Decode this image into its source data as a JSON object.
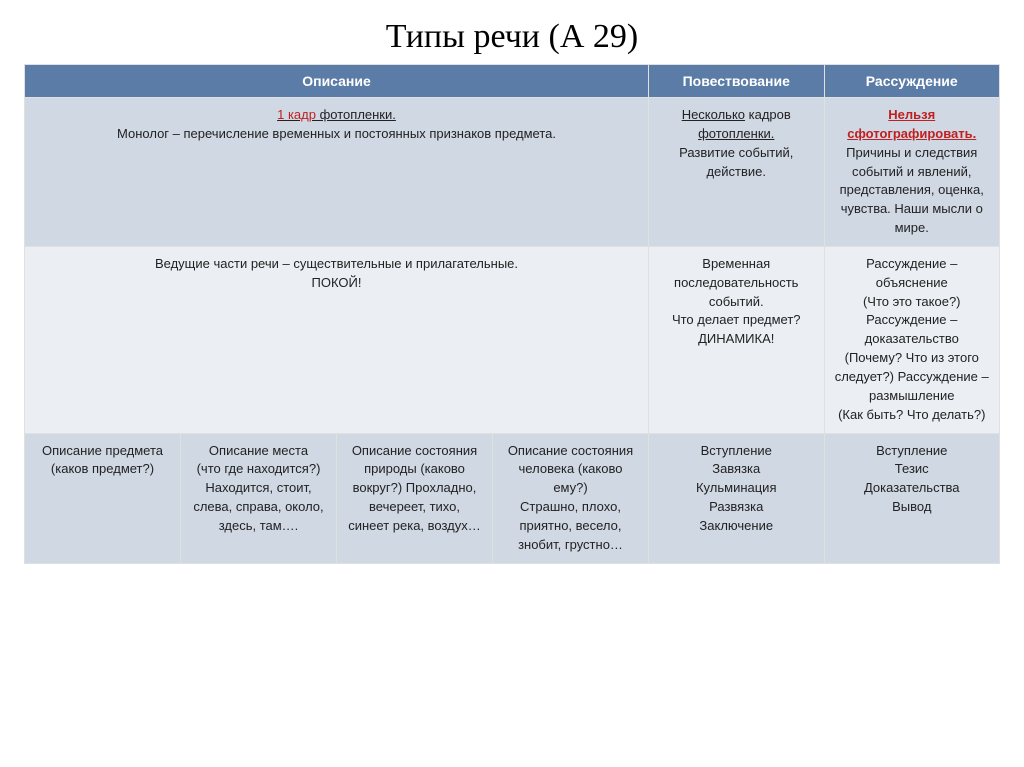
{
  "title": "Типы речи (А 29)",
  "colors": {
    "header_bg": "#5b7ca6",
    "header_text": "#ffffff",
    "row_odd": "#d0d8e4",
    "row_even": "#ebeef3",
    "accent_red": "#c02020",
    "border": "#e0e0e0",
    "text": "#222222"
  },
  "table": {
    "col_widths_pct": [
      16,
      16,
      16,
      16,
      18,
      18
    ],
    "headers": {
      "description": "Описание",
      "narration": "Повествование",
      "reasoning": "Рассуждение"
    },
    "row1": {
      "description": {
        "prefix_red_underline": "1 кадр",
        "prefix_rest_underline": " фотопленки.",
        "body": "Монолог – перечисление временных и постоянных признаков предмета."
      },
      "narration": {
        "line1_underline": "Несколько",
        "line1_rest": " кадров",
        "line2_underline": "фотопленки.",
        "body": "Развитие событий, действие."
      },
      "reasoning": {
        "line1_red_bold_u": "Нельзя",
        "line2_red_bold_u": "сфотографировать.",
        "body": "Причины и следствия событий и явлений, представления, оценка, чувства. Наши мысли о мире."
      }
    },
    "row2": {
      "description": {
        "line1": "Ведущие части речи – существительные и прилагательные.",
        "line2": "ПОКОЙ!"
      },
      "narration": "Временная последовательность событий.\nЧто делает предмет?\nДИНАМИКА!",
      "reasoning": "Рассуждение – объяснение\n(Что это такое?)\nРассуждение – доказательство (Почему? Что из этого следует?) Рассуждение – размышление\n(Как быть? Что делать?)"
    },
    "row3": {
      "c1": "Описание предмета\n(каков предмет?)",
      "c2": "Описание места\n(что где находится?)\nНаходится, стоит, слева, справа, около, здесь, там….",
      "c3": "Описание состояния природы (каково вокруг?) Прохладно, вечереет, тихо, синеет река, воздух…",
      "c4": "Описание состояния человека (каково ему?)\nСтрашно, плохо, приятно, весело, знобит, грустно…",
      "c5": "Вступление\nЗавязка\nКульминация\nРазвязка\nЗаключение",
      "c6": "Вступление\nТезис\nДоказательства\nВывод"
    }
  }
}
